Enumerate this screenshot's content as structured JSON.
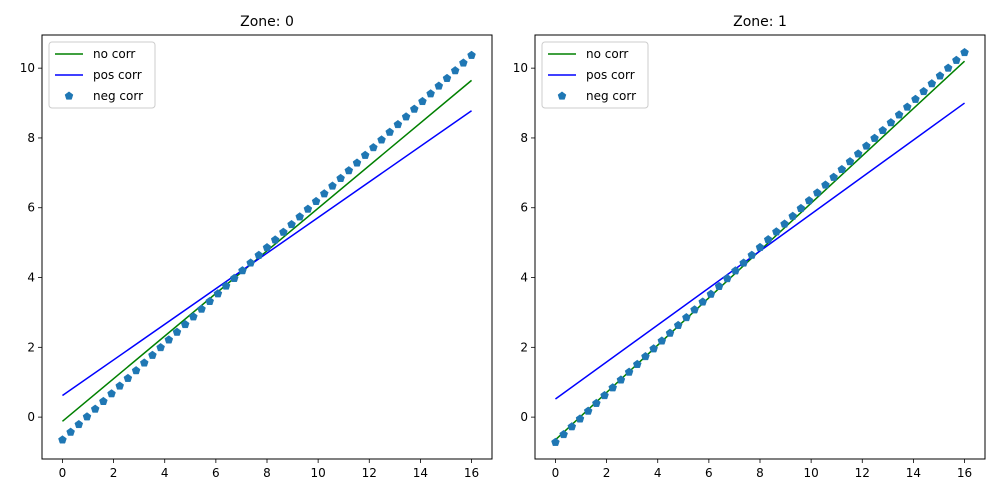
{
  "chart_data": [
    {
      "type": "line",
      "title": "Zone: 0",
      "xlim": [
        -0.8,
        16.8
      ],
      "ylim": [
        -1.2,
        10.95
      ],
      "xticks": [
        0,
        2,
        4,
        6,
        8,
        10,
        12,
        14,
        16
      ],
      "yticks": [
        0,
        2,
        4,
        6,
        8,
        10
      ],
      "legend": "top-left",
      "series": [
        {
          "name": "no corr",
          "style": "line",
          "color": "#008000",
          "x": [
            0,
            16
          ],
          "y": [
            -0.12,
            9.65
          ]
        },
        {
          "name": "pos corr",
          "style": "line",
          "color": "#0000ff",
          "x": [
            0,
            16
          ],
          "y": [
            0.62,
            8.78
          ]
        },
        {
          "name": "neg corr",
          "style": "markers",
          "color": "#1f77b4",
          "marker": "pentagon",
          "x_start": 0,
          "x_end": 16,
          "count": 51,
          "y_start": -0.65,
          "y_end": 10.37
        }
      ]
    },
    {
      "type": "line",
      "title": "Zone: 1",
      "xlim": [
        -0.8,
        16.8
      ],
      "ylim": [
        -1.2,
        10.95
      ],
      "xticks": [
        0,
        2,
        4,
        6,
        8,
        10,
        12,
        14,
        16
      ],
      "yticks": [
        0,
        2,
        4,
        6,
        8,
        10
      ],
      "legend": "top-left",
      "series": [
        {
          "name": "no corr",
          "style": "line",
          "color": "#008000",
          "x": [
            0,
            16
          ],
          "y": [
            -0.65,
            10.2
          ]
        },
        {
          "name": "pos corr",
          "style": "line",
          "color": "#0000ff",
          "x": [
            0,
            16
          ],
          "y": [
            0.52,
            9.0
          ]
        },
        {
          "name": "neg corr",
          "style": "markers",
          "color": "#1f77b4",
          "marker": "pentagon",
          "x_start": 0,
          "x_end": 16,
          "count": 51,
          "y_start": -0.72,
          "y_end": 10.45
        }
      ]
    }
  ]
}
